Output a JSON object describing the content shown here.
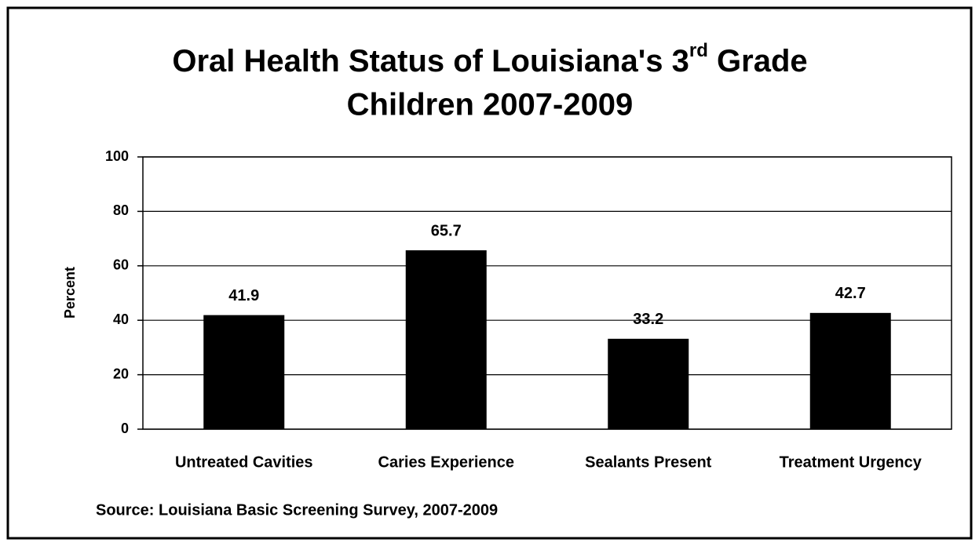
{
  "chart_data": {
    "type": "bar",
    "title": [
      "Oral Health Status of Louisiana's 3",
      "rd",
      " Grade",
      "Children 2007-2009"
    ],
    "y_label": "Percent",
    "categories": [
      "Untreated Cavities",
      "Caries Experience",
      "Sealants Present",
      "Treatment Urgency"
    ],
    "values": [
      41.9,
      65.7,
      33.2,
      42.7
    ],
    "color": "#000000",
    "ylim": [
      0,
      100
    ],
    "yticks": [
      0,
      20,
      40,
      60,
      80,
      100
    ],
    "grid": true,
    "source": "Source: Louisiana Basic Screening Survey, 2007-2009"
  }
}
